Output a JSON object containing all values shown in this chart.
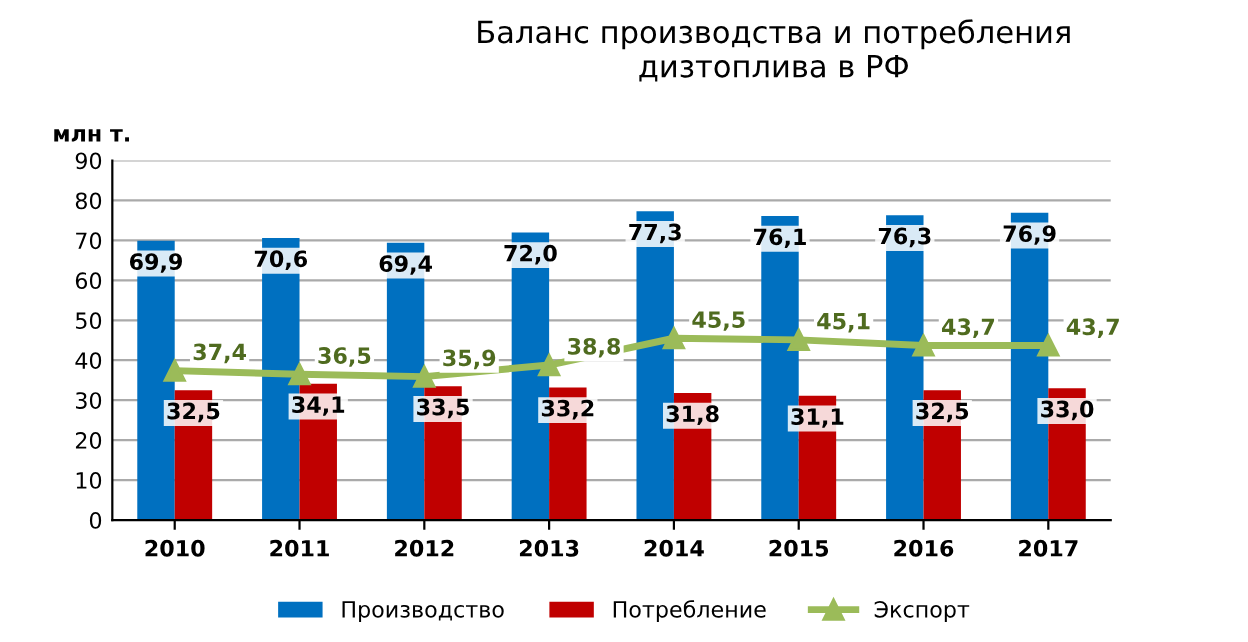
{
  "chart_data": {
    "type": "bar",
    "title": "Баланс производства и потребления\nдизтоплива в РФ",
    "ylabel": "млн т.",
    "categories": [
      "2010",
      "2011",
      "2012",
      "2013",
      "2014",
      "2015",
      "2016",
      "2017"
    ],
    "series": [
      {
        "name": "Производство",
        "color": "#0070c0",
        "values": [
          69.9,
          70.6,
          69.4,
          72.0,
          77.3,
          76.1,
          76.3,
          76.9
        ],
        "value_labels": [
          "69,9",
          "70,6",
          "69,4",
          "72,0",
          "77,3",
          "76,1",
          "76,3",
          "76,9"
        ]
      },
      {
        "name": "Потребление",
        "color": "#c00000",
        "values": [
          32.5,
          34.1,
          33.5,
          33.2,
          31.8,
          31.1,
          32.5,
          33.0
        ],
        "value_labels": [
          "32,5",
          "34,1",
          "33,5",
          "33,2",
          "31,8",
          "31,1",
          "32,5",
          "33,0"
        ]
      },
      {
        "name": "Экспорт",
        "type": "line",
        "color": "#9bbb59",
        "marker": "triangle",
        "values": [
          37.4,
          36.5,
          35.9,
          38.8,
          45.5,
          45.1,
          43.7,
          43.7
        ],
        "value_labels": [
          "37,4",
          "36,5",
          "35,9",
          "38,8",
          "45,5",
          "45,1",
          "43,7",
          "43,7"
        ]
      }
    ],
    "ylim": [
      0,
      90
    ],
    "yticks": [
      0,
      10,
      20,
      30,
      40,
      50,
      60,
      70,
      80,
      90
    ],
    "grid": "y",
    "legend": "bottom"
  }
}
